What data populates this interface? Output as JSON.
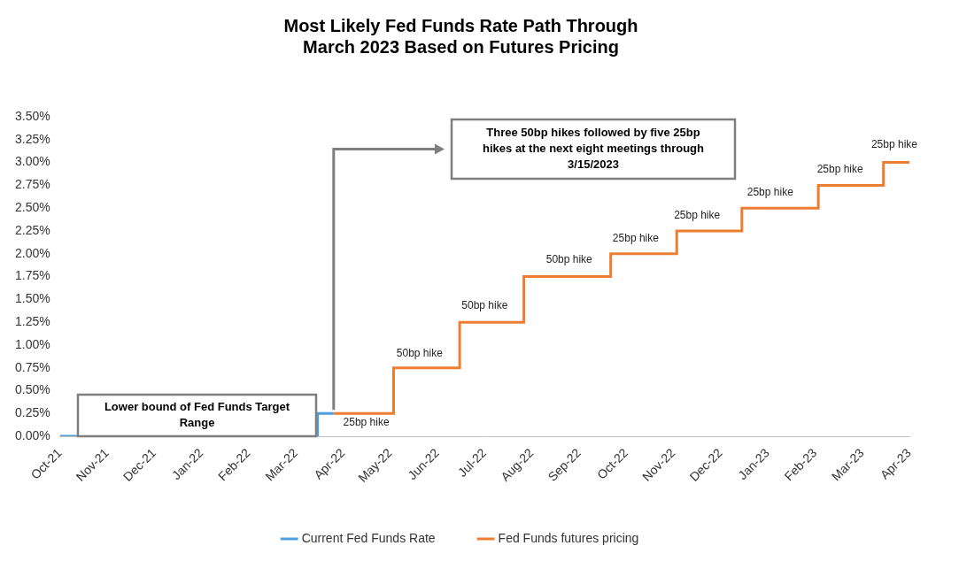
{
  "chart_data": {
    "type": "step",
    "title": [
      "Most Likely Fed Funds Rate Path Through",
      "March 2023 Based on Futures Pricing"
    ],
    "xlim": [
      0,
      18
    ],
    "xticks": [
      {
        "value": 0,
        "label": "Oct-21"
      },
      {
        "value": 1,
        "label": "Nov-21"
      },
      {
        "value": 2,
        "label": "Dec-21"
      },
      {
        "value": 3,
        "label": "Jan-22"
      },
      {
        "value": 4,
        "label": "Feb-22"
      },
      {
        "value": 5,
        "label": "Mar-22"
      },
      {
        "value": 6,
        "label": "Apr-22"
      },
      {
        "value": 7,
        "label": "May-22"
      },
      {
        "value": 8,
        "label": "Jun-22"
      },
      {
        "value": 9,
        "label": "Jul-22"
      },
      {
        "value": 10,
        "label": "Aug-22"
      },
      {
        "value": 11,
        "label": "Sep-22"
      },
      {
        "value": 12,
        "label": "Oct-22"
      },
      {
        "value": 13,
        "label": "Nov-22"
      },
      {
        "value": 14,
        "label": "Dec-22"
      },
      {
        "value": 15,
        "label": "Jan-23"
      },
      {
        "value": 16,
        "label": "Feb-23"
      },
      {
        "value": 17,
        "label": "Mar-23"
      },
      {
        "value": 18,
        "label": "Apr-23"
      }
    ],
    "ylim": [
      0,
      3.5
    ],
    "yticks": [
      {
        "value": 0,
        "label": "0.00%"
      },
      {
        "value": 0.25,
        "label": "0.25%"
      },
      {
        "value": 0.5,
        "label": "0.50%"
      },
      {
        "value": 0.75,
        "label": "0.75%"
      },
      {
        "value": 1,
        "label": "1.00%"
      },
      {
        "value": 1.25,
        "label": "1.25%"
      },
      {
        "value": 1.5,
        "label": "1.50%"
      },
      {
        "value": 1.75,
        "label": "1.75%"
      },
      {
        "value": 2,
        "label": "2.00%"
      },
      {
        "value": 2.25,
        "label": "2.25%"
      },
      {
        "value": 2.5,
        "label": "2.50%"
      },
      {
        "value": 2.75,
        "label": "2.75%"
      },
      {
        "value": 3,
        "label": "3.00%"
      },
      {
        "value": 3.25,
        "label": "3.25%"
      },
      {
        "value": 3.5,
        "label": "3.50%"
      }
    ],
    "grid": false,
    "legend": "bottom",
    "series": [
      {
        "name": "Current Fed Funds Rate",
        "color": "#4e9fdc",
        "x": [
          0,
          5.46,
          5.8
        ],
        "values": [
          0,
          0.25,
          0.25
        ]
      },
      {
        "name": "Fed Funds futures pricing",
        "color": "#ed7d31",
        "x": [
          5.8,
          7.07,
          8.47,
          9.83,
          11.67,
          13.07,
          14.45,
          16.07,
          17.45,
          18
        ],
        "values": [
          0.25,
          0.75,
          1.25,
          1.75,
          2.0,
          2.25,
          2.5,
          2.75,
          3.0,
          3.0
        ]
      }
    ],
    "annotations": [
      {
        "text": "25bp hike",
        "x": 6.49,
        "y": 0.15
      },
      {
        "text": "50bp hike",
        "x": 7.62,
        "y": 0.91
      },
      {
        "text": "50bp hike",
        "x": 9.0,
        "y": 1.43
      },
      {
        "text": "50bp hike",
        "x": 10.79,
        "y": 1.93
      },
      {
        "text": "25bp hike",
        "x": 12.2,
        "y": 2.17
      },
      {
        "text": "25bp hike",
        "x": 13.5,
        "y": 2.42
      },
      {
        "text": "25bp hike",
        "x": 15.05,
        "y": 2.67
      },
      {
        "text": "25bp hike",
        "x": 16.53,
        "y": 2.92
      },
      {
        "text": "25bp hike",
        "x": 17.68,
        "y": 3.19
      }
    ],
    "text_boxes": [
      {
        "lines": [
          "Lower bound of Fed Funds Target",
          "Range"
        ]
      },
      {
        "lines": [
          "Three 50bp hikes followed by five 25bp",
          "hikes at the next eight meetings through",
          "3/15/2023"
        ]
      }
    ]
  }
}
